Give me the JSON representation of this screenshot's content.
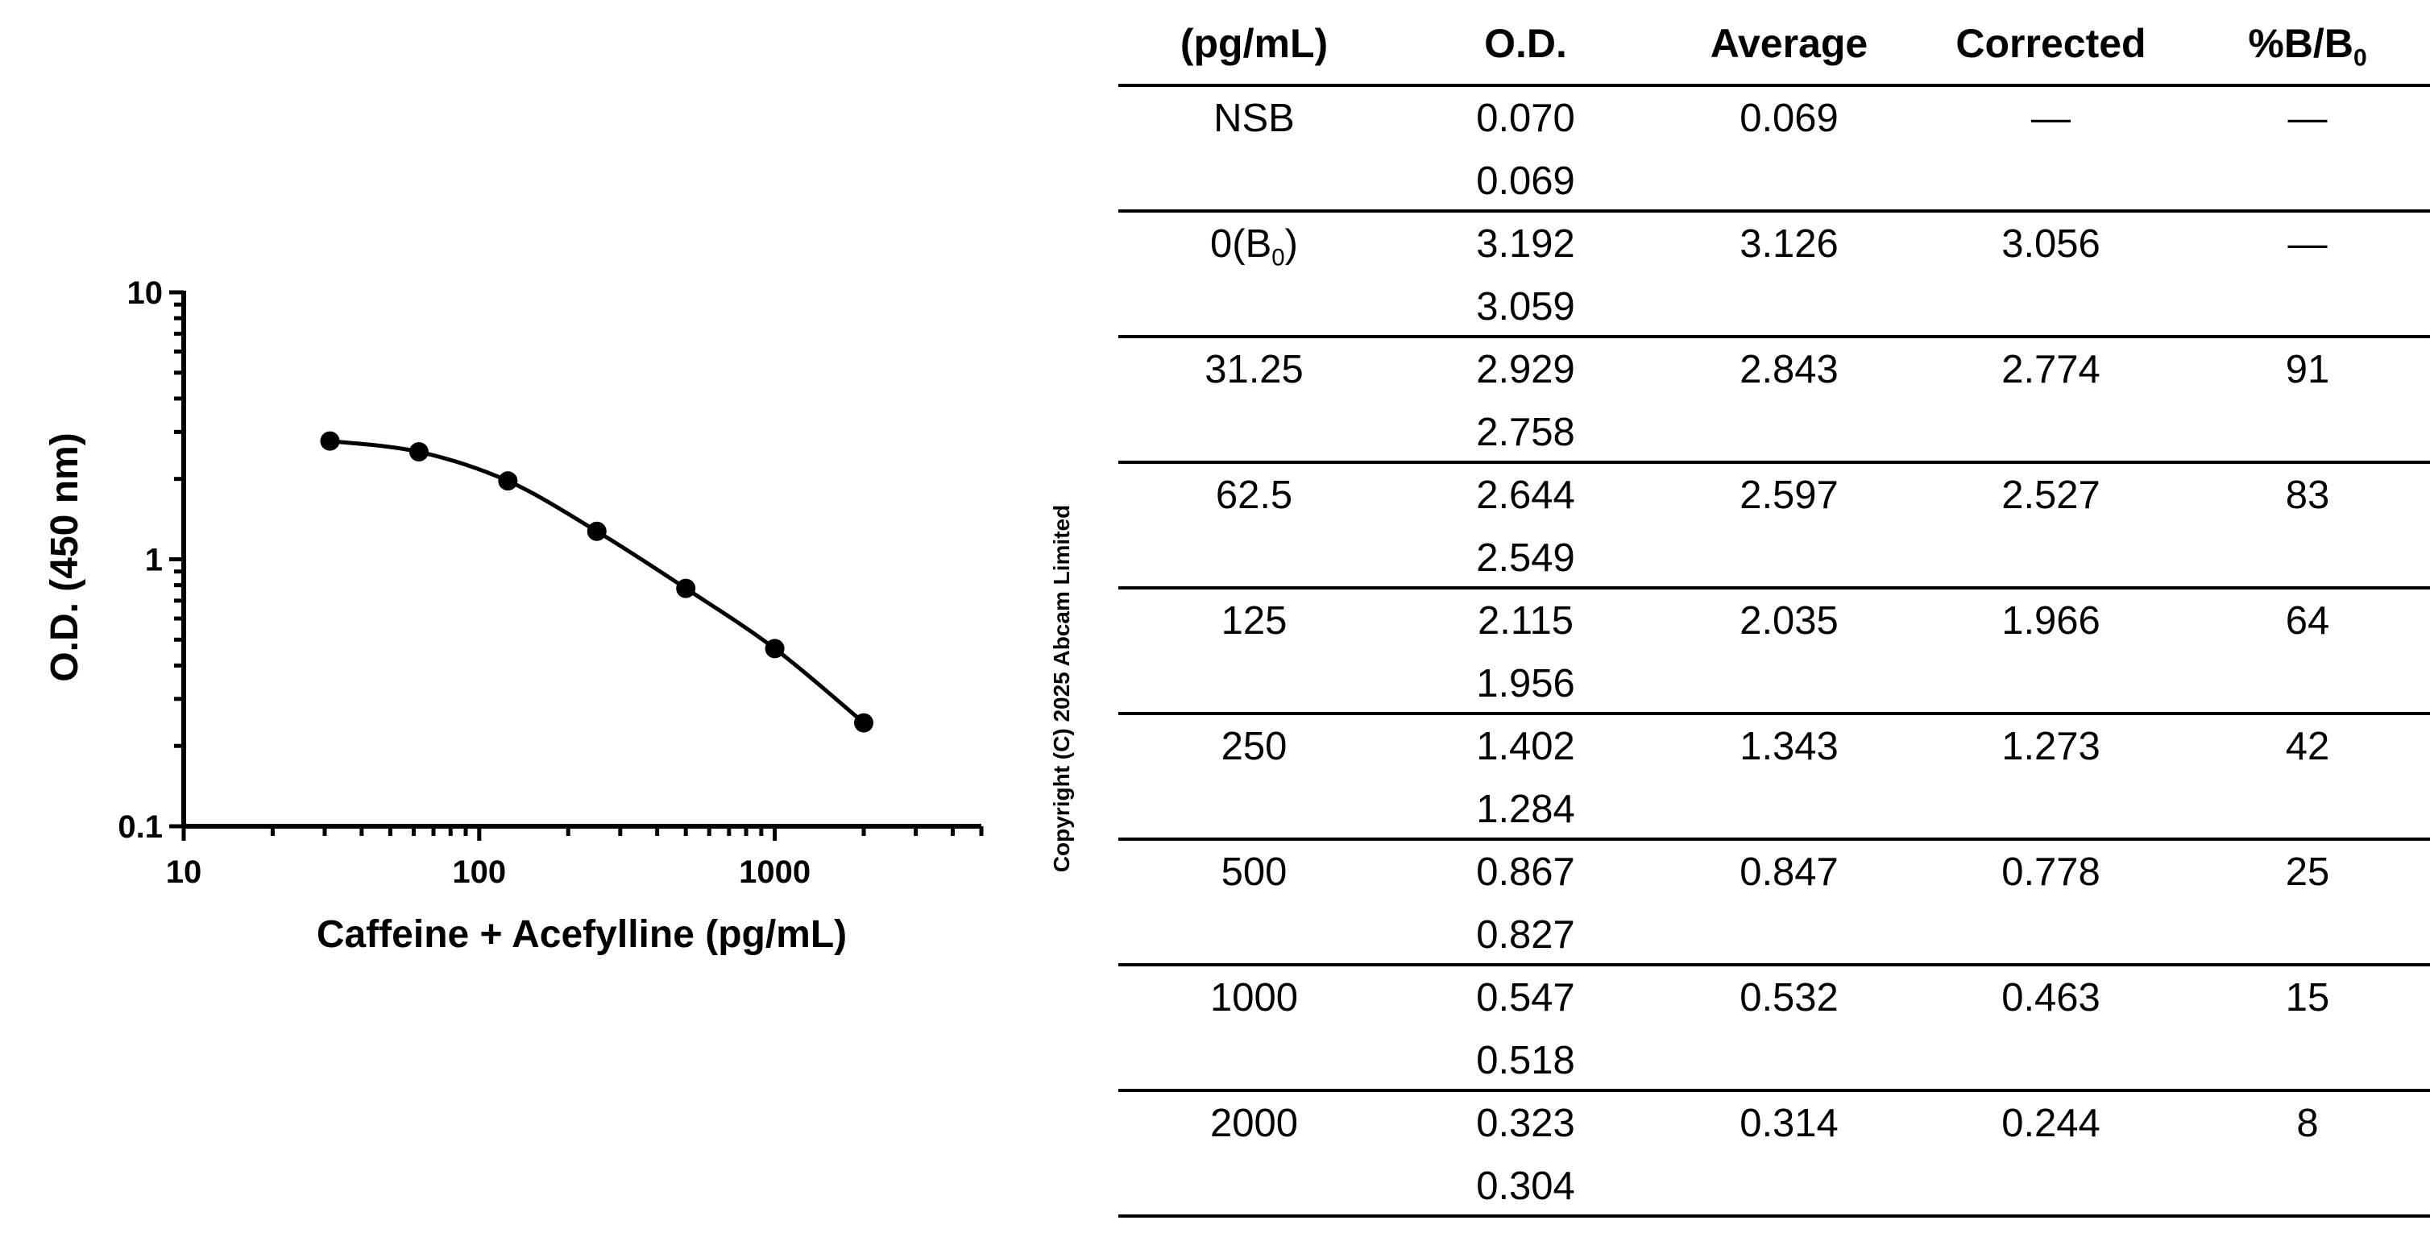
{
  "chart_data": {
    "type": "scatter",
    "title": "",
    "xlabel": "Caffeine + Acefylline (pg/mL)",
    "ylabel": "O.D. (450 nm)",
    "xscale": "log",
    "yscale": "log",
    "xlim": [
      10,
      5000
    ],
    "ylim": [
      0.1,
      10
    ],
    "x_tick_labels": [
      "10",
      "100",
      "1000"
    ],
    "y_tick_labels": [
      "10",
      "1",
      "0.1"
    ],
    "grid": false,
    "legend": "none",
    "fit_line": "4-parameter curve through points",
    "series": [
      {
        "x": [
          31.25,
          62.5,
          125,
          250,
          500,
          1000,
          2000
        ],
        "y": [
          2.774,
          2.527,
          1.966,
          1.273,
          0.778,
          0.463,
          0.244
        ]
      }
    ]
  },
  "copyright": "Copyright (C) 2025 Abcam Limited",
  "table": {
    "headers": {
      "conc": "(pg/mL)",
      "od": "O.D.",
      "avg": "Average",
      "corr": "Corrected",
      "pct_main": "%B/B",
      "pct_sub": "0"
    },
    "rows": [
      {
        "conc": "NSB",
        "od1": "0.070",
        "od2": "0.069",
        "avg": "0.069",
        "corr": "—",
        "pct": "—"
      },
      {
        "conc": "0(B",
        "conc_sub": "0",
        "conc_end": ")",
        "od1": "3.192",
        "od2": "3.059",
        "avg": "3.126",
        "corr": "3.056",
        "pct": "—"
      },
      {
        "conc": "31.25",
        "od1": "2.929",
        "od2": "2.758",
        "avg": "2.843",
        "corr": "2.774",
        "pct": "91"
      },
      {
        "conc": "62.5",
        "od1": "2.644",
        "od2": "2.549",
        "avg": "2.597",
        "corr": "2.527",
        "pct": "83"
      },
      {
        "conc": "125",
        "od1": "2.115",
        "od2": "1.956",
        "avg": "2.035",
        "corr": "1.966",
        "pct": "64"
      },
      {
        "conc": "250",
        "od1": "1.402",
        "od2": "1.284",
        "avg": "1.343",
        "corr": "1.273",
        "pct": "42"
      },
      {
        "conc": "500",
        "od1": "0.867",
        "od2": "0.827",
        "avg": "0.847",
        "corr": "0.778",
        "pct": "25"
      },
      {
        "conc": "1000",
        "od1": "0.547",
        "od2": "0.518",
        "avg": "0.532",
        "corr": "0.463",
        "pct": "15"
      },
      {
        "conc": "2000",
        "od1": "0.323",
        "od2": "0.304",
        "avg": "0.314",
        "corr": "0.244",
        "pct": "8"
      }
    ]
  }
}
